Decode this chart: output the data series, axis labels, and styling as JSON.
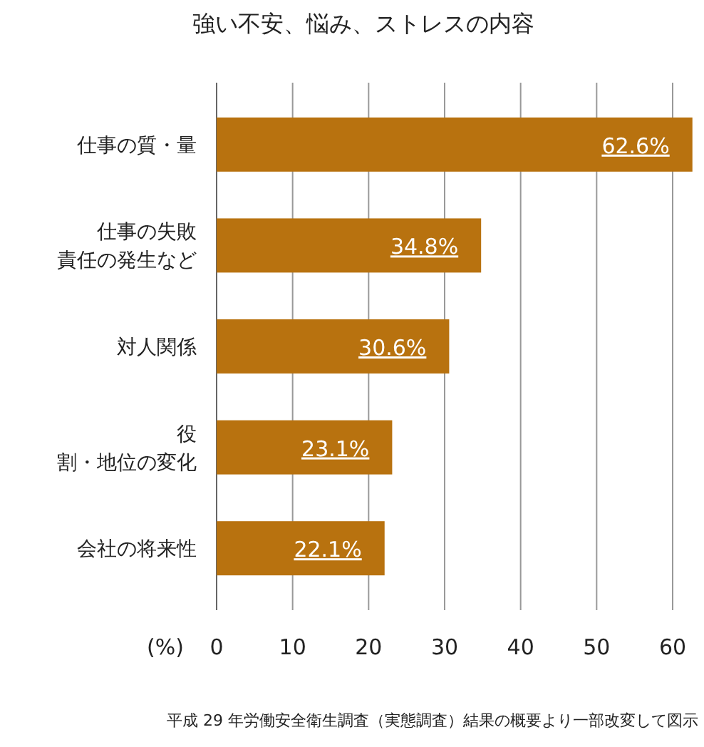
{
  "chart_data": {
    "type": "bar",
    "orientation": "horizontal",
    "title": "強い不安、悩み、ストレスの内容",
    "categories": [
      "仕事の質・量",
      "仕事の失敗責任の発生など",
      "対人関係",
      "役割・地位の変化",
      "会社の将来性"
    ],
    "values": [
      62.6,
      34.8,
      30.6,
      23.1,
      22.1
    ],
    "value_labels": [
      "62.6%",
      "34.8%",
      "30.6%",
      "23.1%",
      "22.1%"
    ],
    "color": "#b8720f",
    "xlim": [
      0,
      63
    ],
    "xticks": [
      0,
      10,
      20,
      30,
      40,
      50,
      60
    ],
    "xlabel": "(%)",
    "grid": "x",
    "annotations": [
      "平成 29 年労働安全衛生調査（実態調査）結果の概要より一部改変して図示"
    ]
  }
}
